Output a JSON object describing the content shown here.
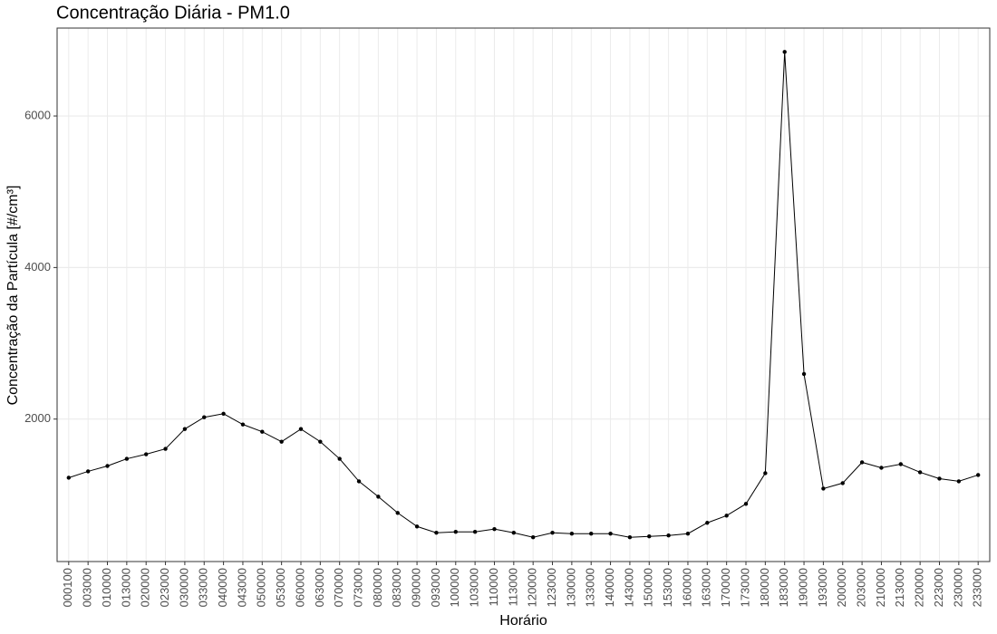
{
  "chart_data": {
    "type": "line",
    "title": "Concentração Diária - PM1.0",
    "x_label": "Horário",
    "y_label": "Concentração da Partícula [#/cm³]",
    "categories": [
      "000100",
      "003000",
      "010000",
      "013000",
      "020000",
      "023000",
      "030000",
      "033000",
      "040000",
      "043000",
      "050000",
      "053000",
      "060000",
      "063000",
      "070000",
      "073000",
      "080000",
      "083000",
      "090000",
      "093000",
      "100000",
      "103000",
      "110000",
      "113000",
      "120000",
      "123000",
      "130000",
      "133000",
      "140000",
      "143000",
      "150000",
      "153000",
      "160000",
      "163000",
      "170000",
      "173000",
      "180000",
      "183000",
      "190000",
      "193000",
      "200000",
      "203000",
      "210000",
      "213000",
      "220000",
      "223000",
      "230000",
      "233000"
    ],
    "series": [
      {
        "name": "PM1.0",
        "color": "#000000",
        "values": [
          1226,
          1310,
          1381,
          1476,
          1536,
          1607,
          1869,
          2024,
          2071,
          1929,
          1833,
          1702,
          1869,
          1702,
          1476,
          1179,
          976,
          762,
          583,
          500,
          512,
          512,
          548,
          500,
          440,
          500,
          488,
          488,
          488,
          440,
          452,
          464,
          488,
          631,
          726,
          881,
          1286,
          6845,
          2595,
          1083,
          1155,
          1429,
          1357,
          1405,
          1298,
          1214,
          1179,
          1262
        ]
      }
    ],
    "ylim": [
      120,
      7160
    ],
    "yticks": [
      2000,
      4000,
      6000
    ],
    "grid": true
  }
}
